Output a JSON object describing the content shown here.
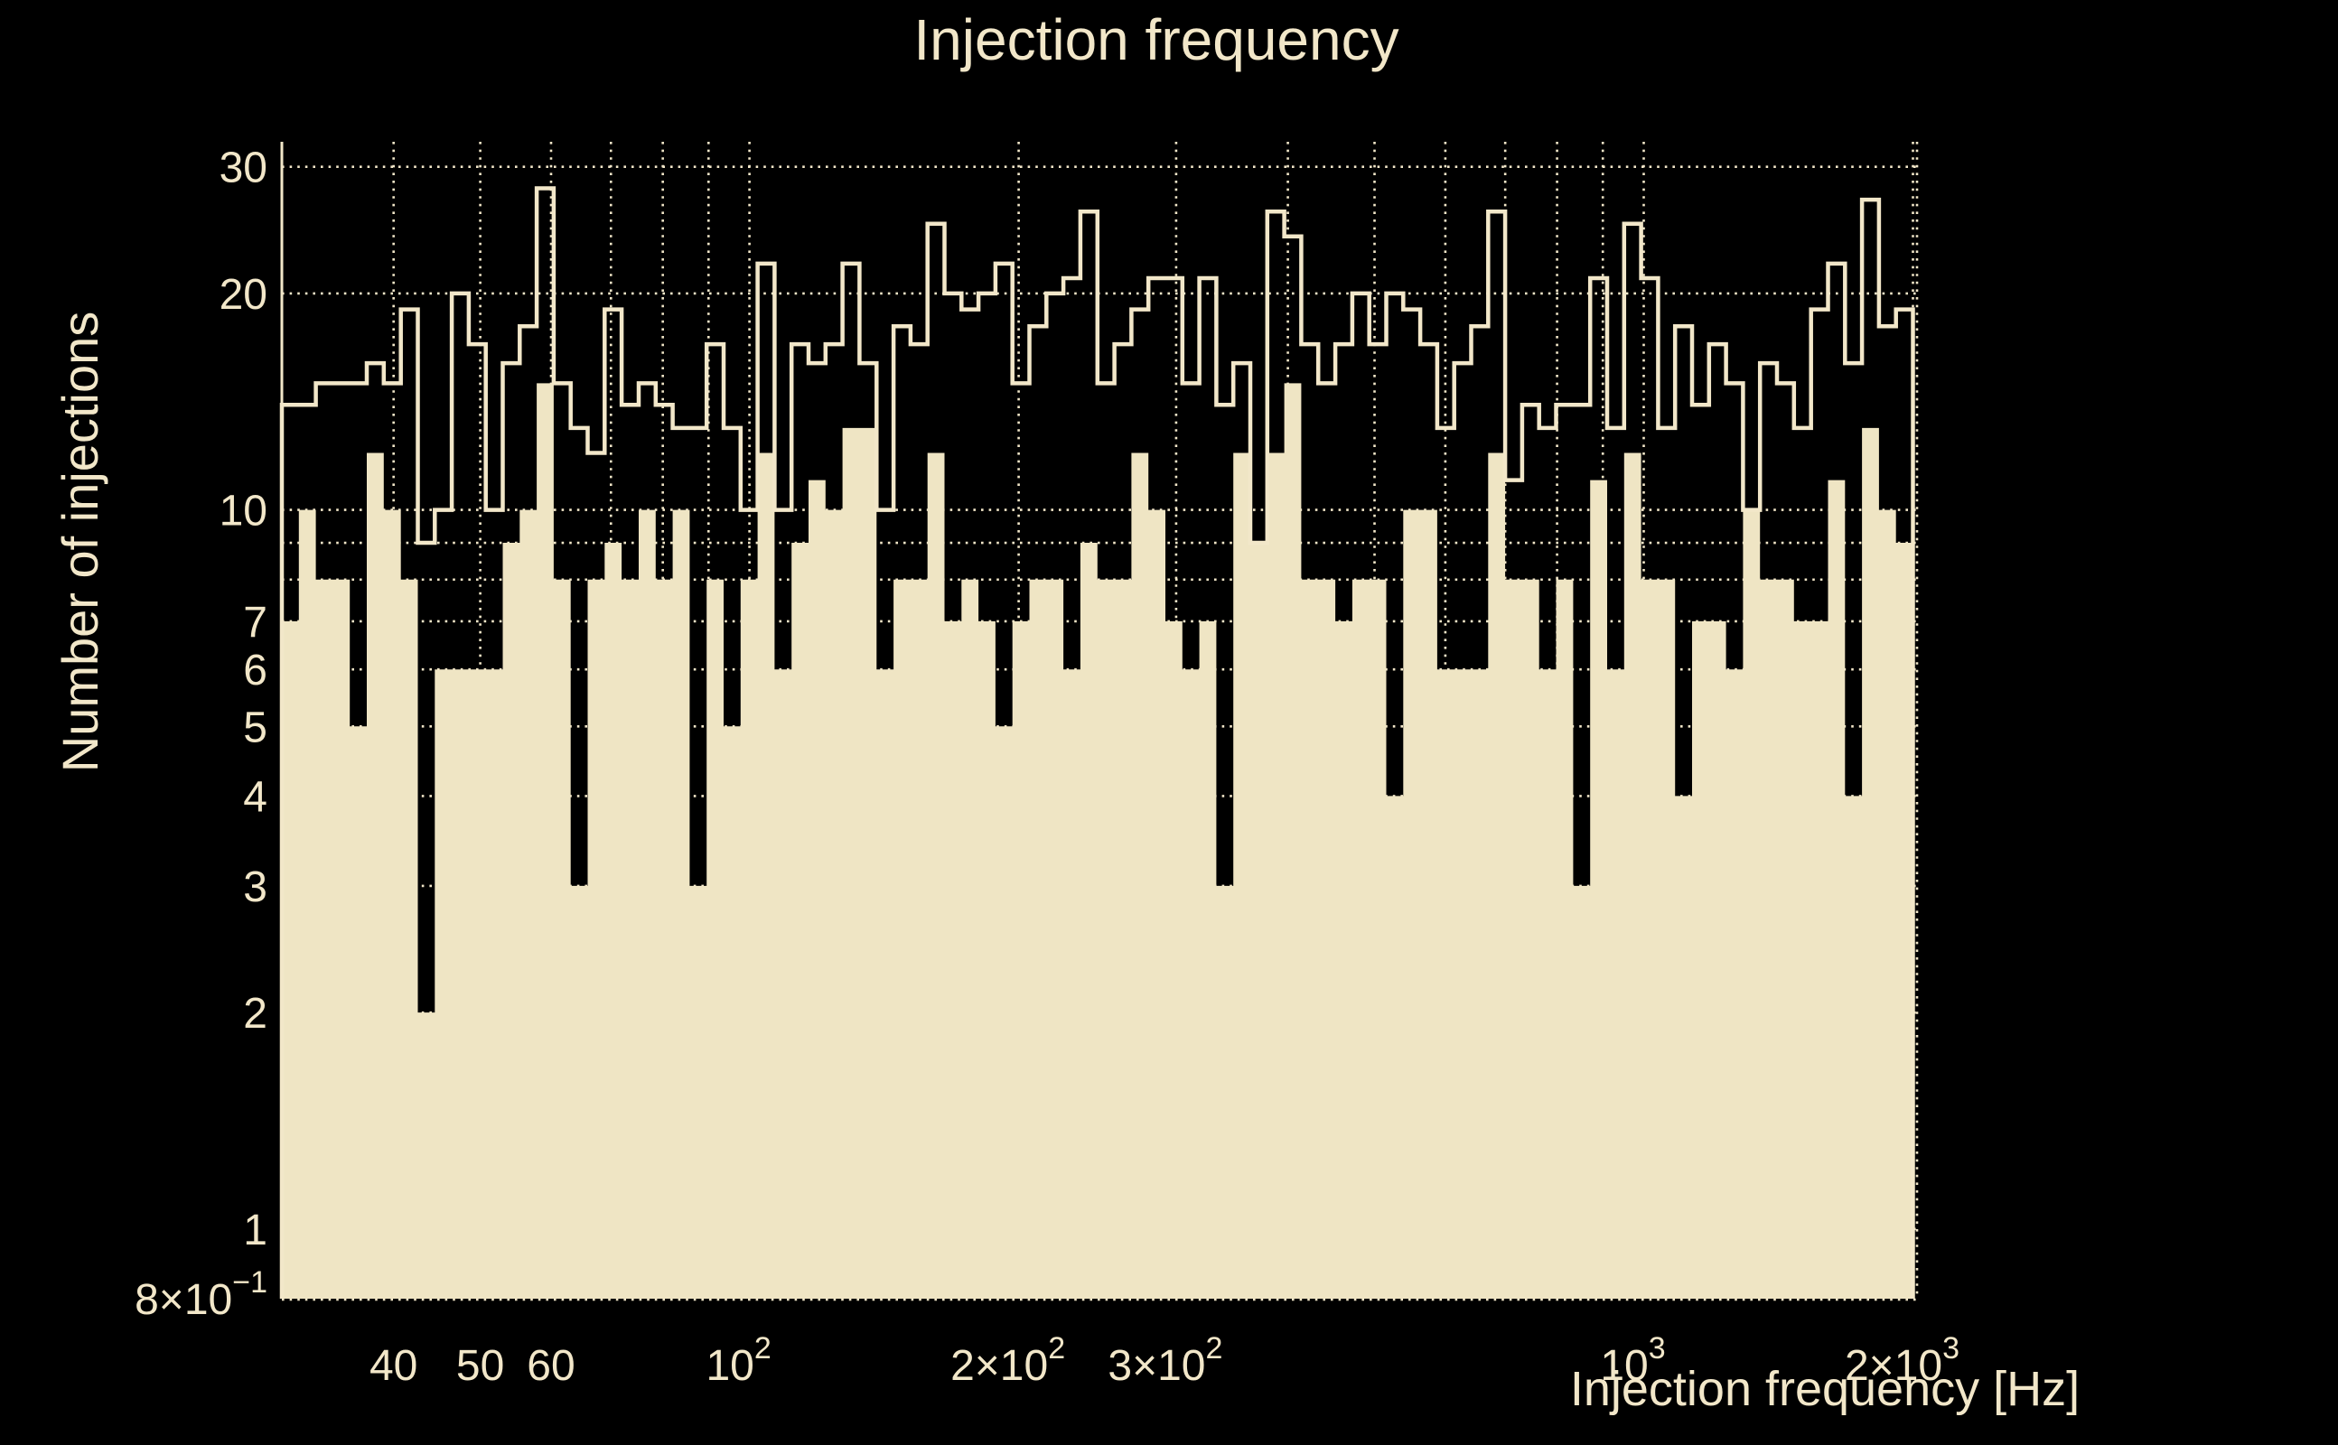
{
  "title": "Injection frequency",
  "colors": {
    "background": "#000000",
    "foreground": "#f2e7c9",
    "fill": "#efe5c4"
  },
  "chart_data": {
    "type": "histogram",
    "scale": "log-log",
    "title": "Injection frequency",
    "xlabel": "Injection frequency [Hz]",
    "ylabel": "Number of injections",
    "x_domain_hz": [
      30,
      2000
    ],
    "y_domain": [
      0.8,
      32.5
    ],
    "bins": {
      "count": 96,
      "min_hz": 30,
      "max_hz": 2000,
      "spacing": "log-uniform"
    },
    "series": [
      {
        "name": "filled-histogram",
        "style": "filled",
        "values": [
          7,
          10,
          8,
          8,
          5,
          12,
          10,
          8,
          2,
          6,
          6,
          6,
          6,
          9,
          10,
          15,
          8,
          3,
          8,
          9,
          8,
          10,
          8,
          10,
          3,
          8,
          5,
          8,
          12,
          6,
          9,
          11,
          10,
          13,
          13,
          6,
          8,
          8,
          12,
          7,
          8,
          7,
          5,
          7,
          8,
          8,
          6,
          9,
          8,
          8,
          12,
          10,
          7,
          6,
          7,
          3,
          12,
          9,
          12,
          15,
          8,
          8,
          7,
          8,
          8,
          4,
          10,
          10,
          6,
          6,
          6,
          12,
          8,
          8,
          6,
          8,
          3,
          11,
          6,
          12,
          8,
          8,
          4,
          7,
          7,
          6,
          10,
          8,
          8,
          7,
          7,
          11,
          4,
          13,
          10,
          9
        ]
      },
      {
        "name": "outline-histogram",
        "style": "step-outline",
        "values": [
          14,
          14,
          15,
          15,
          15,
          16,
          15,
          19,
          9,
          10,
          20,
          17,
          10,
          16,
          18,
          28,
          15,
          13,
          12,
          19,
          14,
          15,
          14,
          13,
          13,
          17,
          13,
          10,
          22,
          10,
          17,
          16,
          17,
          22,
          16,
          10,
          18,
          17,
          25,
          20,
          19,
          20,
          22,
          15,
          18,
          20,
          21,
          26,
          15,
          17,
          19,
          21,
          21,
          15,
          21,
          14,
          16,
          9,
          26,
          24,
          17,
          15,
          17,
          20,
          17,
          20,
          19,
          17,
          13,
          16,
          18,
          26,
          11,
          14,
          13,
          14,
          14,
          21,
          13,
          25,
          21,
          13,
          18,
          14,
          17,
          15,
          10,
          16,
          15,
          13,
          19,
          22,
          16,
          27,
          18,
          19
        ]
      }
    ],
    "x_ticks": [
      {
        "f": 40,
        "label": "40",
        "sup": ""
      },
      {
        "f": 50,
        "label": "50",
        "sup": ""
      },
      {
        "f": 60,
        "label": "60",
        "sup": ""
      },
      {
        "f": 100,
        "label": "10",
        "sup": "2"
      },
      {
        "f": 200,
        "label": "2×10",
        "sup": "2"
      },
      {
        "f": 300,
        "label": "3×10",
        "sup": "2"
      },
      {
        "f": 1000,
        "label": "10",
        "sup": "3"
      },
      {
        "f": 2000,
        "label": "2×10",
        "sup": "3"
      }
    ],
    "y_ticks": [
      {
        "v": 30,
        "label": "30",
        "sup": ""
      },
      {
        "v": 20,
        "label": "20",
        "sup": ""
      },
      {
        "v": 10,
        "label": "10",
        "sup": ""
      },
      {
        "v": 7,
        "label": "7",
        "sup": ""
      },
      {
        "v": 6,
        "label": "6",
        "sup": ""
      },
      {
        "v": 5,
        "label": "5",
        "sup": ""
      },
      {
        "v": 4,
        "label": "4",
        "sup": ""
      },
      {
        "v": 3,
        "label": "3",
        "sup": ""
      },
      {
        "v": 2,
        "label": "2",
        "sup": ""
      },
      {
        "v": 1,
        "label": "1",
        "sup": ""
      },
      {
        "v": 0.8,
        "label": "8×10",
        "sup": "−1"
      }
    ],
    "grid_y": [
      30,
      20,
      10,
      9,
      8,
      7,
      6,
      5,
      4,
      3,
      2,
      1
    ],
    "grid_x": [
      40,
      50,
      60,
      70,
      80,
      90,
      100,
      200,
      300,
      400,
      500,
      600,
      700,
      800,
      900,
      1000,
      2000
    ],
    "grid_style": "dotted",
    "legend": "none"
  }
}
